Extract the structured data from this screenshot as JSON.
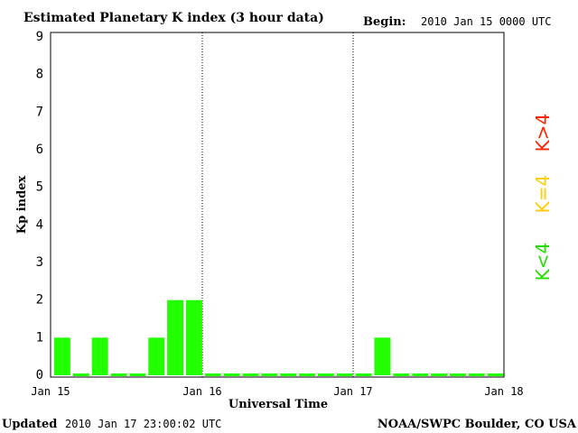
{
  "title": "Estimated Planetary K index (3 hour data)",
  "begin_label": "Begin:",
  "begin_value": "2010 Jan 15 0000 UTC",
  "updated_label": "Updated",
  "updated_value": "2010 Jan 17 23:00:02 UTC",
  "source": "NOAA/SWPC Boulder, CO USA",
  "legend": [
    {
      "text": "K<4",
      "color": "#22dd00"
    },
    {
      "text": "K=4",
      "color": "#ffcc00"
    },
    {
      "text": "K>4",
      "color": "#ff2200"
    }
  ],
  "colors": {
    "quiet": "#22ff00",
    "active": "#ffcc00",
    "storm": "#ff2200"
  },
  "chart_data": {
    "type": "bar",
    "title": "Estimated Planetary K index (3 hour data)",
    "xlabel": "Universal Time",
    "ylabel": "Kp index",
    "ylim": [
      0,
      9
    ],
    "yticks": [
      0,
      1,
      2,
      3,
      4,
      5,
      6,
      7,
      8,
      9
    ],
    "xticks": [
      "Jan 15",
      "Jan 16",
      "Jan 17",
      "Jan 18"
    ],
    "day_dividers": [
      "Jan 16",
      "Jan 17"
    ],
    "slots_per_day": 8,
    "total_slots": 24,
    "values": [
      1,
      0,
      1,
      0,
      0,
      1,
      2,
      2,
      0,
      0,
      0,
      0,
      0,
      0,
      0,
      0,
      0,
      1,
      0,
      0,
      0,
      0,
      0,
      0
    ],
    "grid": false
  }
}
